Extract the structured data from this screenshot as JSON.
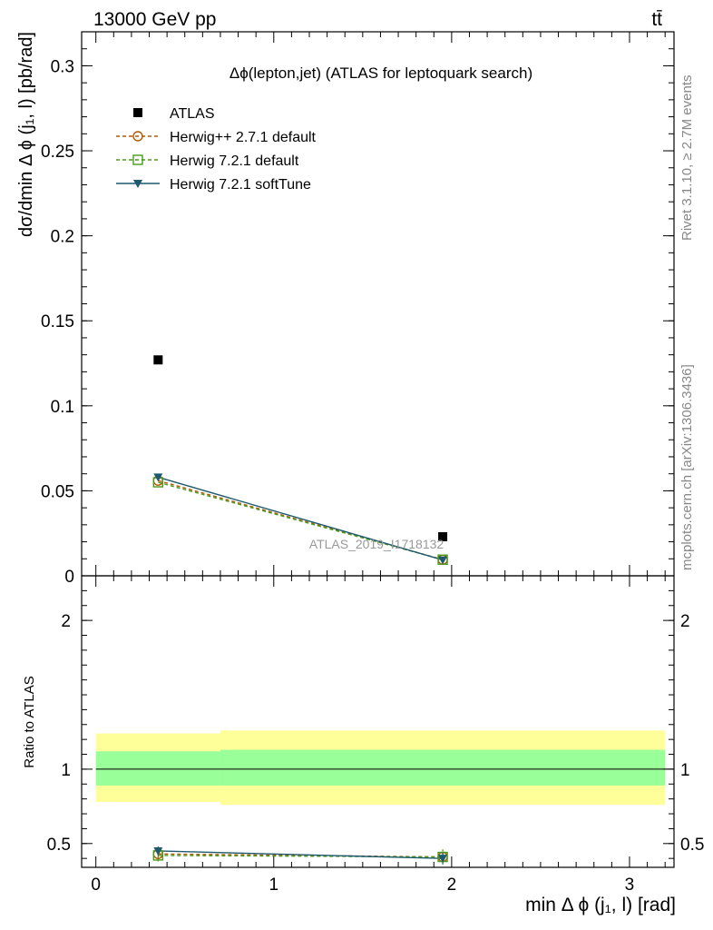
{
  "header": {
    "left": "13000 GeV pp",
    "right": "tt̄"
  },
  "side": {
    "rivet": "Rivet 3.1.10, ≥ 2.7M events",
    "mcplots": "mcplots.cern.ch [arXiv:1306.3436]"
  },
  "colors": {
    "atlas": "#000000",
    "herwigpp": "#b35a00",
    "herwig721": "#4a9a1a",
    "softtune": "#1e5a6e",
    "band_outer": "#ffff99",
    "band_inner": "#99ff99"
  },
  "chart_data": [
    {
      "type": "scatter",
      "title": "Δϕ(lepton,jet) (ATLAS for leptoquark search)",
      "watermark": "ATLAS_2019_I1718132",
      "ylabel": "dσ/dmin Δ ϕ (j₁, l) [pb/rad]",
      "xlim": [
        -0.08,
        3.25
      ],
      "ylim": [
        0,
        0.32
      ],
      "yticks": [
        {
          "v": 0,
          "label": "0"
        },
        {
          "v": 0.05,
          "label": "0.05"
        },
        {
          "v": 0.1,
          "label": "0.1"
        },
        {
          "v": 0.15,
          "label": "0.15"
        },
        {
          "v": 0.2,
          "label": "0.2"
        },
        {
          "v": 0.25,
          "label": "0.25"
        },
        {
          "v": 0.3,
          "label": "0.3"
        }
      ],
      "series": [
        {
          "name": "ATLAS",
          "marker": "square-filled",
          "x": [
            0.35,
            1.95
          ],
          "y": [
            0.127,
            0.023
          ]
        },
        {
          "name": "Herwig++ 2.7.1 default",
          "marker": "circle-open",
          "x": [
            0.35,
            1.95
          ],
          "y": [
            0.056,
            0.0095
          ]
        },
        {
          "name": "Herwig 7.2.1 default",
          "marker": "square-open",
          "x": [
            0.35,
            1.95
          ],
          "y": [
            0.055,
            0.0095
          ]
        },
        {
          "name": "Herwig 7.2.1 softTune",
          "marker": "triangle-down",
          "x": [
            0.35,
            1.95
          ],
          "y": [
            0.058,
            0.0093
          ]
        }
      ]
    },
    {
      "type": "scatter",
      "ylabel": "Ratio to ATLAS",
      "xlabel": "min Δ ϕ (j₁, l) [rad]",
      "xlim": [
        -0.08,
        3.25
      ],
      "ylim": [
        0.34,
        2.3
      ],
      "xticks": [
        {
          "v": 0,
          "label": "0"
        },
        {
          "v": 1,
          "label": "1"
        },
        {
          "v": 2,
          "label": "2"
        },
        {
          "v": 3,
          "label": "3"
        }
      ],
      "yticks": [
        {
          "v": 0.5,
          "label": "0.5"
        },
        {
          "v": 1,
          "label": "1"
        },
        {
          "v": 2,
          "label": "2"
        }
      ],
      "bands": [
        {
          "x0": 0,
          "x1": 0.7,
          "outer": [
            0.78,
            1.24
          ],
          "inner": [
            0.89,
            1.12
          ]
        },
        {
          "x0": 0.7,
          "x1": 3.2,
          "outer": [
            0.76,
            1.26
          ],
          "inner": [
            0.89,
            1.13
          ]
        }
      ],
      "series": [
        {
          "name": "Herwig++ 2.7.1 default",
          "x": [
            0.35,
            1.95
          ],
          "y": [
            0.43,
            0.41
          ],
          "err": [
            0.04,
            0.05
          ]
        },
        {
          "name": "Herwig 7.2.1 default",
          "x": [
            0.35,
            1.95
          ],
          "y": [
            0.42,
            0.41
          ],
          "err": [
            0.04,
            0.05
          ]
        },
        {
          "name": "Herwig 7.2.1 softTune",
          "x": [
            0.35,
            1.95
          ],
          "y": [
            0.45,
            0.4
          ],
          "err": [
            0.03,
            0.04
          ]
        }
      ]
    }
  ]
}
